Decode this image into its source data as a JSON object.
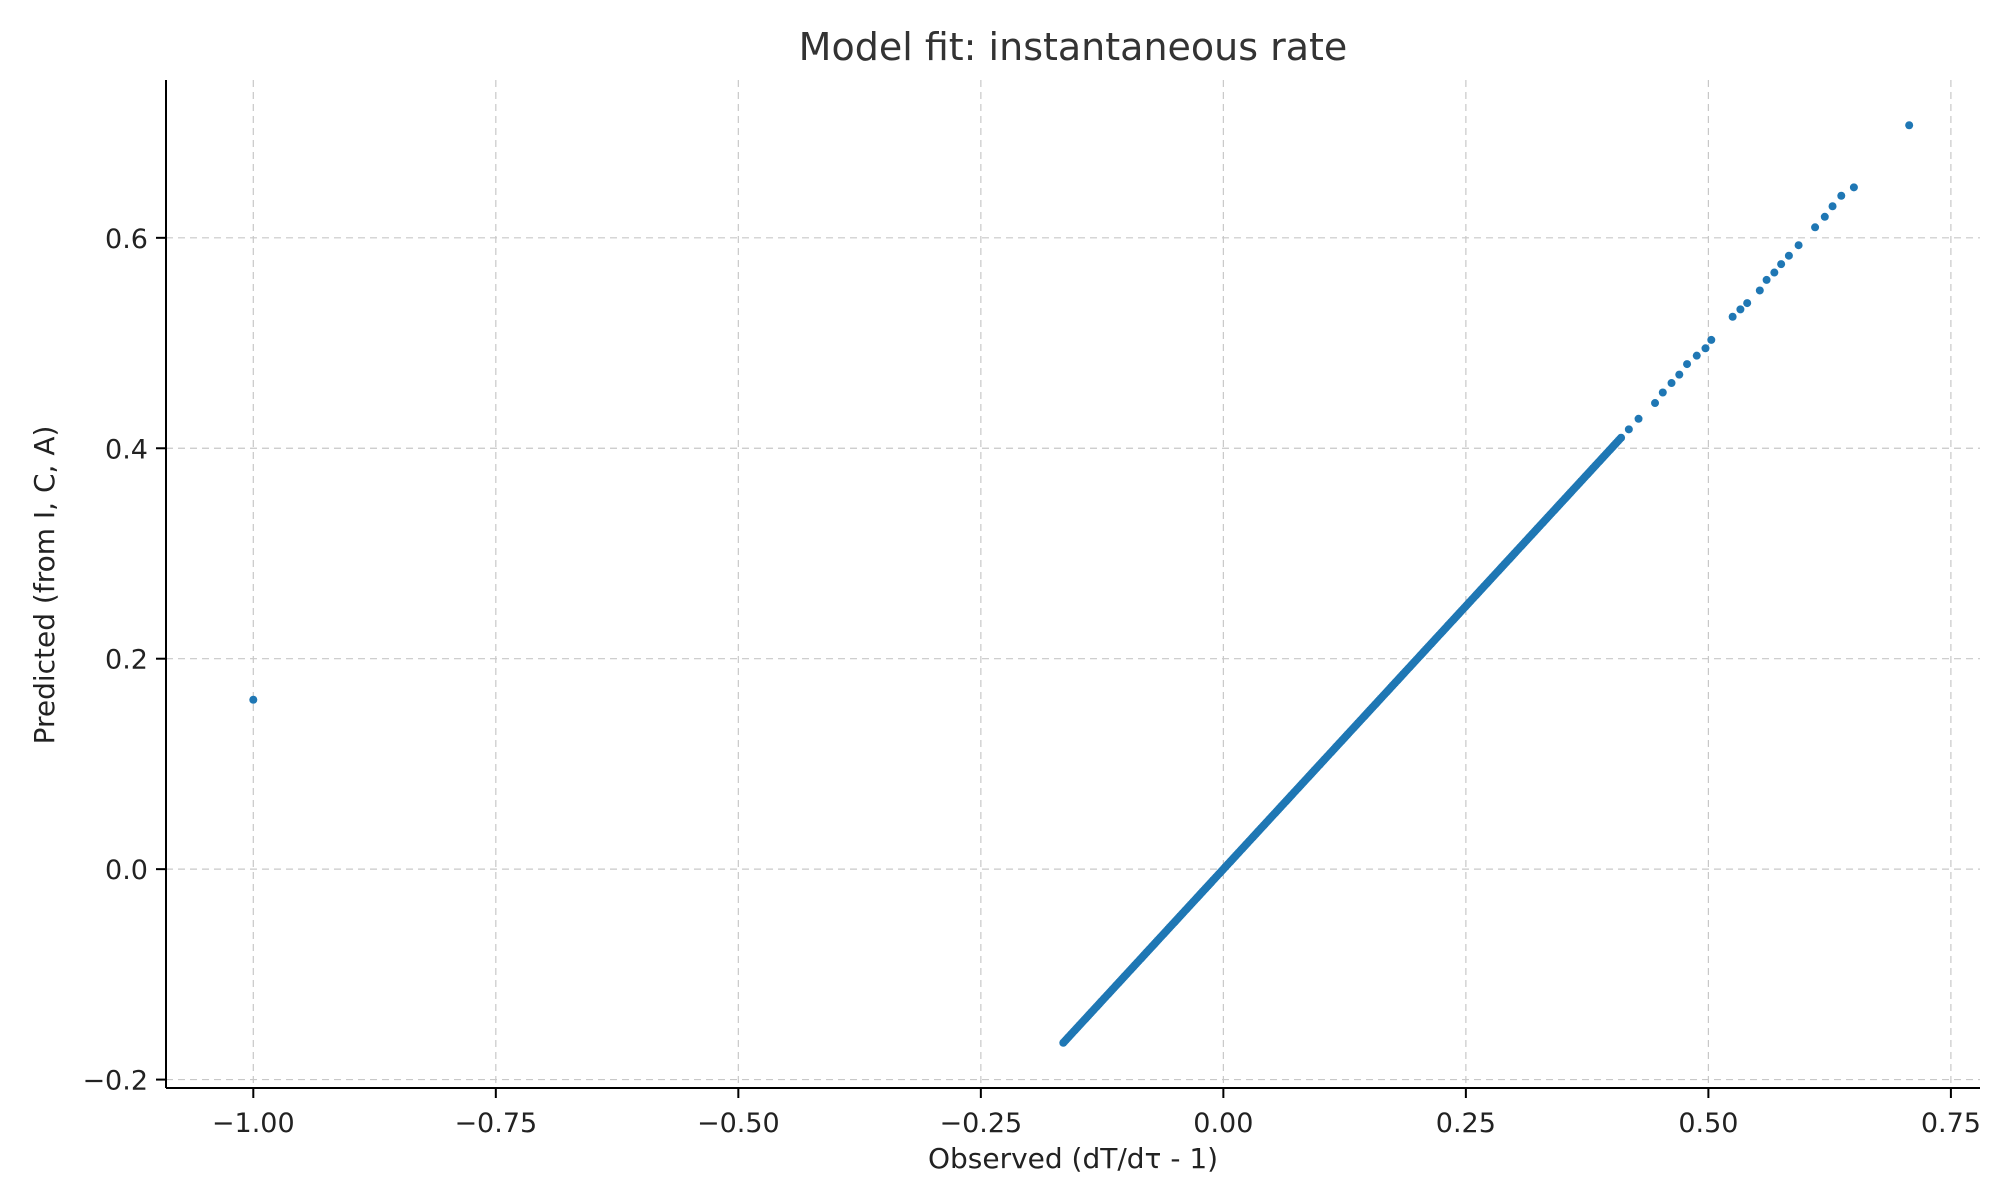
{
  "chart_data": {
    "type": "scatter",
    "title": "Model fit: instantaneous rate",
    "xlabel": "Observed (dT/dτ - 1)",
    "ylabel": "Predicted (from I, C, A)",
    "xlim": [
      -1.09,
      0.78
    ],
    "ylim": [
      -0.208,
      0.75
    ],
    "grid": true,
    "x_ticks": [
      -1.0,
      -0.75,
      -0.5,
      -0.25,
      0.0,
      0.25,
      0.5,
      0.75
    ],
    "x_tick_labels": [
      "−1.00",
      "−0.75",
      "−0.50",
      "−0.25",
      "0.00",
      "0.25",
      "0.50",
      "0.75"
    ],
    "y_ticks": [
      -0.2,
      0.0,
      0.2,
      0.4,
      0.6
    ],
    "y_tick_labels": [
      "−0.2",
      "0.0",
      "0.2",
      "0.4",
      "0.6"
    ],
    "marker_color": "#1f77b4",
    "points": [
      {
        "x": -1.0,
        "y": 0.161
      },
      {
        "x": 0.707,
        "y": 0.707
      },
      {
        "x": 0.65,
        "y": 0.648
      },
      {
        "x": 0.637,
        "y": 0.64
      },
      {
        "x": 0.628,
        "y": 0.63
      },
      {
        "x": 0.62,
        "y": 0.62
      },
      {
        "x": 0.61,
        "y": 0.61
      },
      {
        "x": 0.593,
        "y": 0.593
      },
      {
        "x": 0.583,
        "y": 0.583
      },
      {
        "x": 0.575,
        "y": 0.575
      },
      {
        "x": 0.568,
        "y": 0.567
      },
      {
        "x": 0.56,
        "y": 0.56
      },
      {
        "x": 0.553,
        "y": 0.55
      },
      {
        "x": 0.54,
        "y": 0.538
      },
      {
        "x": 0.533,
        "y": 0.532
      },
      {
        "x": 0.525,
        "y": 0.525
      },
      {
        "x": 0.503,
        "y": 0.503
      },
      {
        "x": 0.497,
        "y": 0.495
      },
      {
        "x": 0.488,
        "y": 0.488
      },
      {
        "x": 0.478,
        "y": 0.48
      },
      {
        "x": 0.47,
        "y": 0.47
      },
      {
        "x": 0.462,
        "y": 0.462
      },
      {
        "x": 0.453,
        "y": 0.453
      },
      {
        "x": 0.445,
        "y": 0.443
      },
      {
        "x": 0.428,
        "y": 0.428
      },
      {
        "x": 0.418,
        "y": 0.418
      }
    ],
    "dense_segment": {
      "x_start": -0.165,
      "x_end": 0.41,
      "slope": 1.0,
      "intercept": 0.0
    }
  }
}
